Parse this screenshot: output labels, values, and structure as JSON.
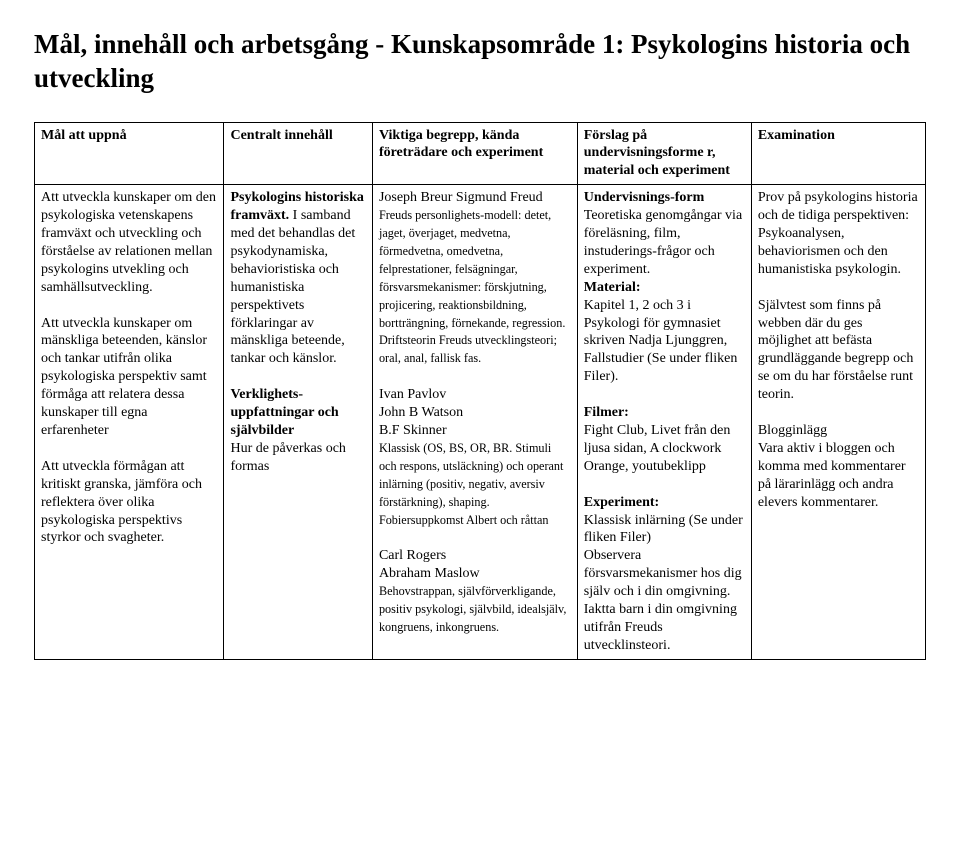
{
  "title": "Mål, innehåll och arbetsgång - Kunskapsområde 1: Psykologins historia och utveckling",
  "table": {
    "headers": {
      "c1": "Mål att uppnå",
      "c2": "Centralt innehåll",
      "c3": "Viktiga begrepp, kända företrädare och experiment",
      "c4": "Förslag på undervisningsforme r, material och experiment",
      "c5": "Examination"
    },
    "row": {
      "c1": {
        "p1": "Att utveckla kunskaper om den psykologiska vetenskapens framväxt och utveckling och förståelse av relationen mellan psykologins utvekling och samhällsutveckling.",
        "p2": "Att utveckla kunskaper om mänskliga beteenden, känslor och tankar utifrån olika psykologiska perspektiv samt förmåga att relatera dessa kunskaper till egna erfarenheter",
        "p3": "Att utveckla förmågan att kritiskt granska, jämföra och reflektera över olika psykologiska perspektivs styrkor och svagheter."
      },
      "c2": {
        "b1": "Psykologins historiska framväxt.",
        "p1": "I samband med det behandlas det psykodynamiska, behavioristiska och humanistiska perspektivets förklaringar av mänskliga beteende, tankar och känslor.",
        "b2": "Verklighets-uppfattningar och självbilder",
        "p2": "Hur de påverkas och formas"
      },
      "c3": {
        "l1": "Joseph Breur Sigmund Freud",
        "s1": "Freuds personlighets-modell: detet, jaget, överjaget, medvetna, förmedvetna, omedvetna, felprestationer, felsägningar, försvarsmekanismer: förskjutning, projicering, reaktionsbildning, bortträngning, förnekande, regression. Driftsteorin Freuds utvecklingsteori; oral, anal, fallisk fas.",
        "l2a": "Ivan Pavlov",
        "l2b": "John B Watson",
        "l2c": "B.F Skinner",
        "s2": "Klassisk (OS, BS, OR, BR. Stimuli och respons, utsläckning) och operant inlärning (positiv, negativ, aversiv förstärkning), shaping. Fobiersuppkomst Albert och råttan",
        "l3a": "Carl Rogers",
        "l3b": "Abraham Maslow",
        "s3": "Behovstrappan, självförverkligande, positiv psykologi, självbild, idealsjälv, kongruens, inkongruens."
      },
      "c4": {
        "b1": "Undervisnings-form",
        "p1": "Teoretiska genomgångar via föreläsning, film, instuderings-frågor och experiment.",
        "b2": "Material:",
        "p2": "Kapitel 1, 2 och 3 i Psykologi för gymnasiet skriven Nadja Ljunggren, Fallstudier (Se under fliken Filer).",
        "b3": "Filmer:",
        "p3": "Fight Club, Livet från den ljusa sidan, A clockwork Orange, youtubeklipp",
        "b4": "Experiment:",
        "p4": "Klassisk inlärning (Se under fliken Filer)",
        "p5": "Observera försvarsmekanismer hos dig själv och i din omgivning.",
        "p6": "Iaktta barn i din omgivning utifrån Freuds utvecklinsteori."
      },
      "c5": {
        "p1": "Prov på psykologins historia och de tidiga perspektiven: Psykoanalysen, behaviorismen och den humanistiska psykologin.",
        "p2": "Självtest som finns på webben där du ges möjlighet att befästa grundläggande begrepp och se om du har förståelse runt teorin.",
        "p3a": "Blogginlägg",
        "p3b": "Vara aktiv i bloggen och komma med kommentarer på lärarinlägg och andra elevers kommentarer."
      }
    }
  }
}
